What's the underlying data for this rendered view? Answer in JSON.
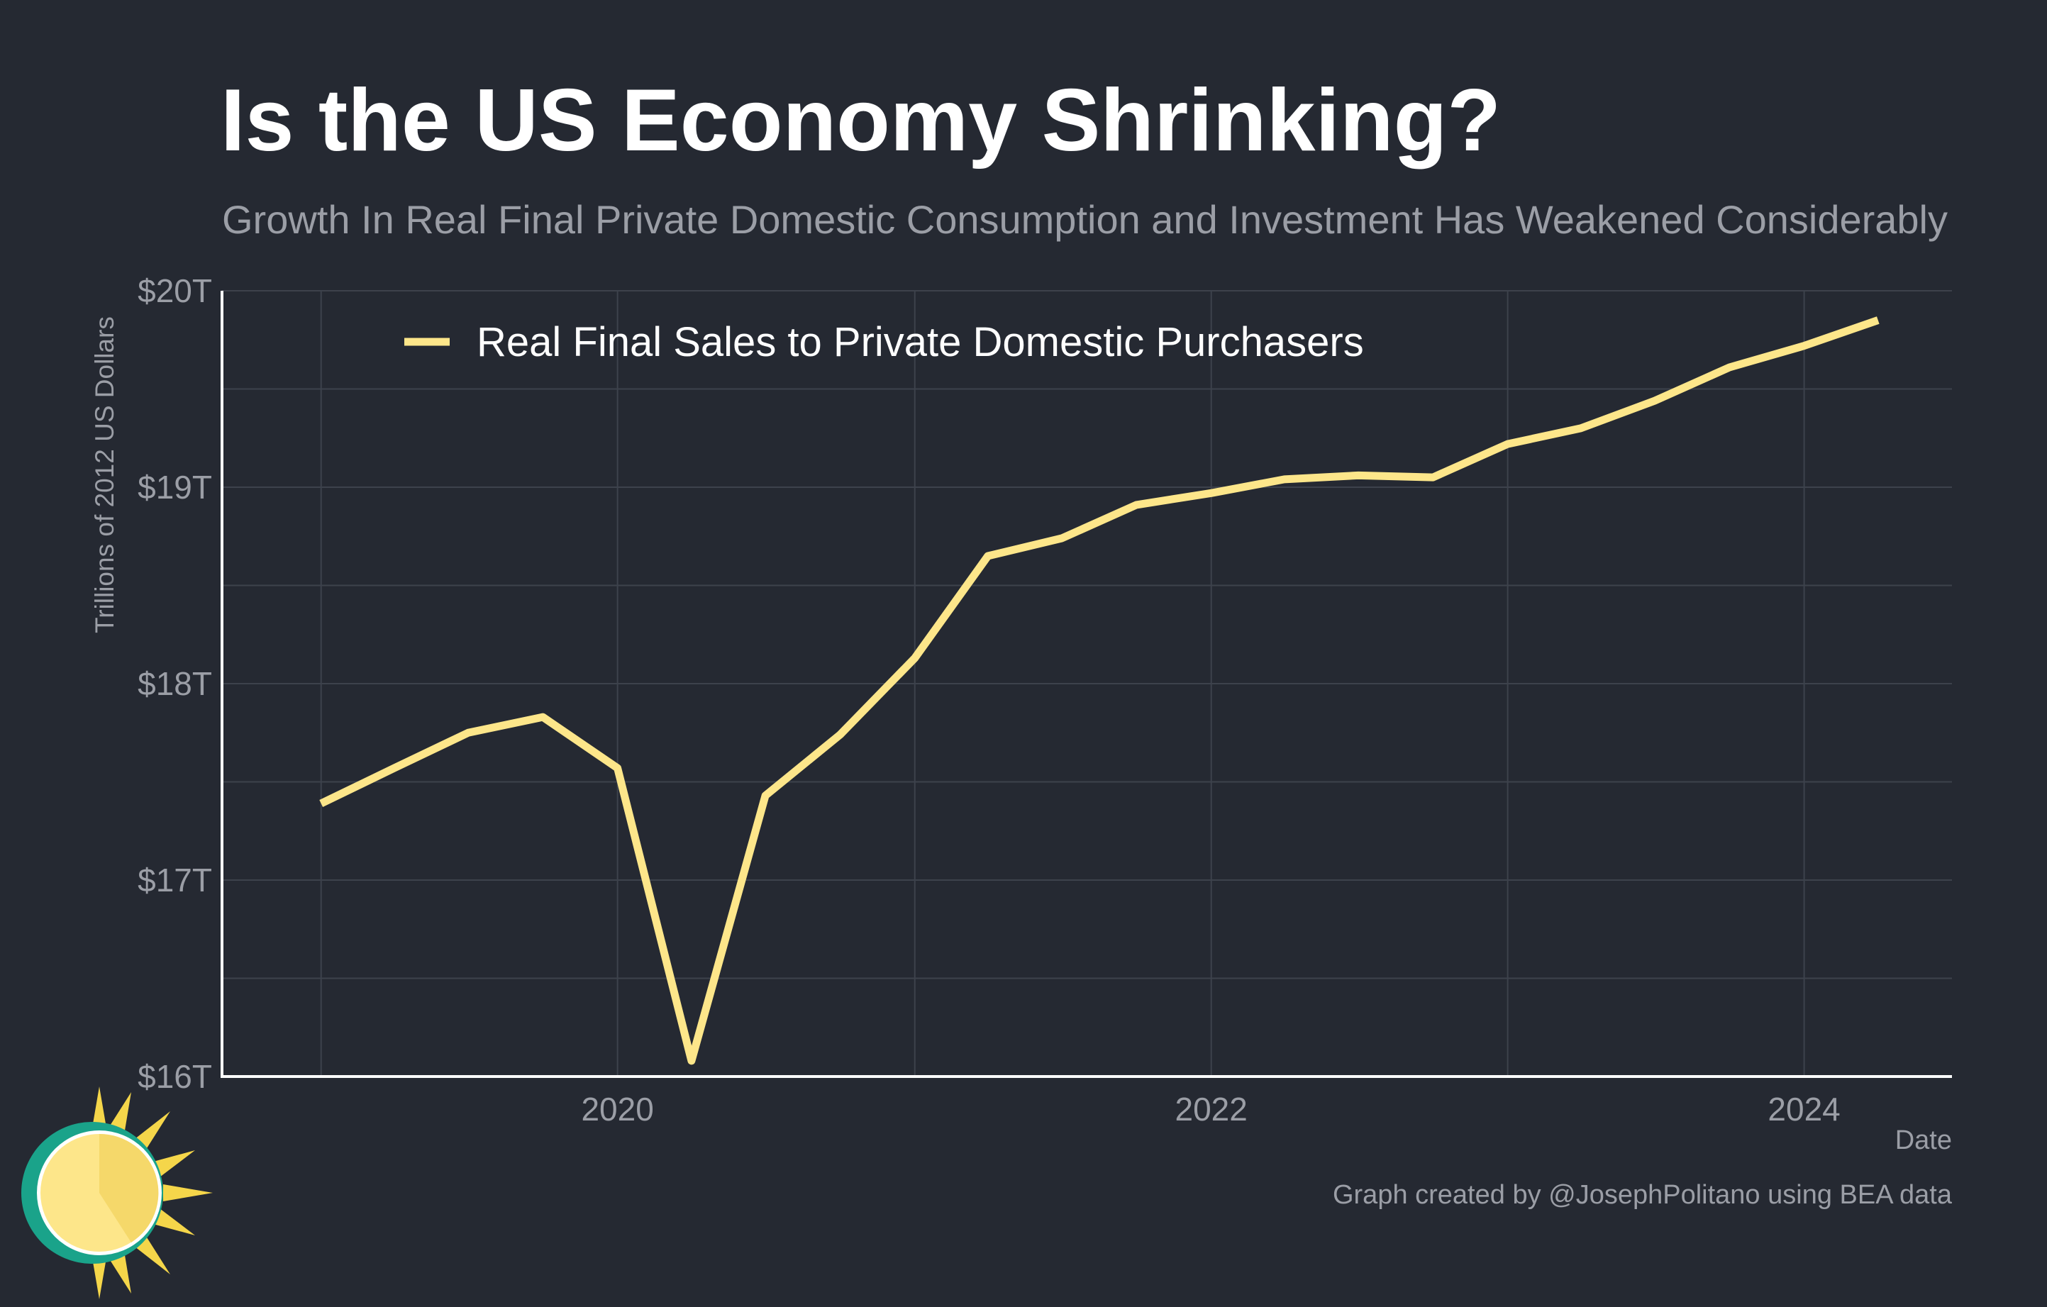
{
  "title": "Is the US Economy Shrinking?",
  "subtitle": "Growth In Real Final Private Domestic Consumption and Investment Has Weakened Considerably",
  "credit": "Graph created by @JosephPolitano using BEA data",
  "colors": {
    "background": "#252932",
    "series": "#fde68a",
    "grid": "#3d424c",
    "axis": "#ffffff",
    "muted_text": "#9b9ea6"
  },
  "chart_data": {
    "type": "line",
    "xlabel": "Date",
    "ylabel": "Trillions of 2012 US Dollars",
    "ylim": [
      16,
      20
    ],
    "xlim": [
      "2018-09-01",
      "2024-07-01"
    ],
    "y_ticks": [
      16,
      17,
      18,
      19,
      20
    ],
    "y_tick_labels": [
      "$16T",
      "$17T",
      "$18T",
      "$19T",
      "$20T"
    ],
    "x_ticks": [
      "2020-01-01",
      "2022-01-01",
      "2024-01-01"
    ],
    "x_tick_labels": [
      "2020",
      "2022",
      "2024"
    ],
    "grid": true,
    "legend_position": "top-left",
    "series": [
      {
        "name": "Real Final Sales to Private Domestic Purchasers",
        "color": "#fde68a",
        "points": [
          {
            "x": "2019-01-01",
            "y": 17.39
          },
          {
            "x": "2019-04-01",
            "y": 17.57
          },
          {
            "x": "2019-07-01",
            "y": 17.75
          },
          {
            "x": "2019-10-01",
            "y": 17.83
          },
          {
            "x": "2020-01-01",
            "y": 17.57
          },
          {
            "x": "2020-04-01",
            "y": 16.08
          },
          {
            "x": "2020-07-01",
            "y": 17.43
          },
          {
            "x": "2020-10-01",
            "y": 17.74
          },
          {
            "x": "2021-01-01",
            "y": 18.13
          },
          {
            "x": "2021-04-01",
            "y": 18.65
          },
          {
            "x": "2021-07-01",
            "y": 18.74
          },
          {
            "x": "2021-10-01",
            "y": 18.91
          },
          {
            "x": "2022-01-01",
            "y": 18.97
          },
          {
            "x": "2022-04-01",
            "y": 19.04
          },
          {
            "x": "2022-07-01",
            "y": 19.06
          },
          {
            "x": "2022-10-01",
            "y": 19.05
          },
          {
            "x": "2023-01-01",
            "y": 19.22
          },
          {
            "x": "2023-04-01",
            "y": 19.3
          },
          {
            "x": "2023-07-01",
            "y": 19.44
          },
          {
            "x": "2023-10-01",
            "y": 19.61
          },
          {
            "x": "2024-01-01",
            "y": 19.72
          },
          {
            "x": "2024-04-01",
            "y": 19.85
          }
        ]
      }
    ]
  }
}
